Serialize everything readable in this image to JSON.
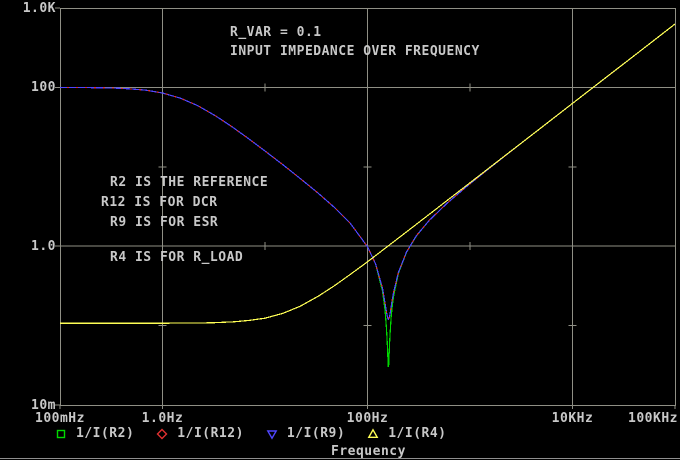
{
  "window": {
    "background": "#000000",
    "grid_color": "#8f8f85",
    "text_color": "#c8c8c8"
  },
  "chart_data": {
    "type": "line",
    "title": "INPUT IMPEDANCE OVER FREQUENCY",
    "param_label": "R_VAR = 0.1",
    "notes": [
      "R2 IS THE REFERENCE",
      "R12 IS FOR DCR",
      "R9 IS FOR ESR",
      "R4 IS FOR R_LOAD"
    ],
    "xlabel": "Frequency",
    "x_axis": {
      "scale": "log",
      "min": 0.1,
      "max": 100000,
      "labeled_ticks": [
        {
          "f": 0.1,
          "label": "100mHz"
        },
        {
          "f": 1,
          "label": "1.0Hz"
        },
        {
          "f": 100,
          "label": "100Hz"
        },
        {
          "f": 10000,
          "label": "10KHz"
        },
        {
          "f": 100000,
          "label": "100KHz"
        }
      ],
      "grid": [
        1,
        100,
        10000
      ],
      "minor": [
        10,
        1000
      ]
    },
    "y_axis": {
      "scale": "log",
      "min": 0.01,
      "max": 1000,
      "labeled_ticks": [
        {
          "v": 1000,
          "label": "1.0K"
        },
        {
          "v": 100,
          "label": "100"
        },
        {
          "v": 1,
          "label": "1.0"
        },
        {
          "v": 0.01,
          "label": "10m"
        }
      ],
      "grid": [
        100,
        1
      ],
      "minor": [
        10,
        0.1
      ]
    },
    "series": [
      {
        "name": "1/I(R2)",
        "color": "#00d800",
        "marker": "square",
        "points": [
          [
            0.1,
            99.8
          ],
          [
            0.15,
            99.6
          ],
          [
            0.22,
            99.1
          ],
          [
            0.33,
            98.2
          ],
          [
            0.47,
            96.1
          ],
          [
            0.68,
            92.4
          ],
          [
            1.0,
            84.9
          ],
          [
            1.5,
            73.1
          ],
          [
            2.2,
            59.0
          ],
          [
            3.3,
            43.8
          ],
          [
            4.7,
            32.4
          ],
          [
            6.8,
            23.0
          ],
          [
            10,
            15.8
          ],
          [
            15,
            10.6
          ],
          [
            22,
            7.15
          ],
          [
            33,
            4.66
          ],
          [
            47,
            3.12
          ],
          [
            68,
            1.94
          ],
          [
            100,
            0.985
          ],
          [
            120,
            0.598
          ],
          [
            140,
            0.271
          ],
          [
            148,
            0.16
          ],
          [
            150,
            0.133
          ],
          [
            153,
            0.095
          ],
          [
            156,
            0.059
          ],
          [
            158,
            0.039
          ],
          [
            159,
            0.0325
          ],
          [
            160,
            0.03
          ],
          [
            161,
            0.0326
          ],
          [
            162,
            0.039
          ],
          [
            164,
            0.058
          ],
          [
            166,
            0.08
          ],
          [
            170,
            0.126
          ],
          [
            175,
            0.183
          ],
          [
            180,
            0.24
          ],
          [
            200,
            0.454
          ],
          [
            240,
            0.839
          ],
          [
            300,
            1.349
          ],
          [
            400,
            2.111
          ],
          [
            600,
            3.502
          ],
          [
            1000,
            6.122
          ],
          [
            2000,
            12.49
          ],
          [
            5000,
            31.4
          ],
          [
            10000,
            62.8
          ],
          [
            30000,
            188.4
          ],
          [
            100000,
            628.2
          ]
        ]
      },
      {
        "name": "1/I(R12)",
        "color": "#e03030",
        "marker": "diamond",
        "points": [
          [
            0.1,
            99.8
          ],
          [
            0.15,
            99.6
          ],
          [
            0.22,
            99.1
          ],
          [
            0.33,
            98.2
          ],
          [
            0.47,
            96.1
          ],
          [
            0.68,
            92.4
          ],
          [
            1.0,
            84.9
          ],
          [
            1.5,
            73.1
          ],
          [
            2.2,
            59.0
          ],
          [
            3.3,
            43.8
          ],
          [
            4.7,
            32.4
          ],
          [
            6.8,
            23.0
          ],
          [
            10,
            15.8
          ],
          [
            15,
            10.6
          ],
          [
            22,
            7.15
          ],
          [
            33,
            4.66
          ],
          [
            47,
            3.12
          ],
          [
            68,
            1.94
          ],
          [
            100,
            0.985
          ],
          [
            120,
            0.598
          ],
          [
            140,
            0.295
          ],
          [
            150,
            0.177
          ],
          [
            155,
            0.136
          ],
          [
            158,
            0.123
          ],
          [
            160,
            0.12
          ],
          [
            163,
            0.126
          ],
          [
            166,
            0.141
          ],
          [
            170,
            0.171
          ],
          [
            175,
            0.217
          ],
          [
            180,
            0.266
          ],
          [
            200,
            0.468
          ],
          [
            240,
            0.846
          ],
          [
            300,
            1.354
          ],
          [
            400,
            2.114
          ],
          [
            600,
            3.504
          ],
          [
            1000,
            6.123
          ],
          [
            2000,
            12.49
          ],
          [
            5000,
            31.4
          ],
          [
            10000,
            62.8
          ],
          [
            30000,
            188.4
          ],
          [
            100000,
            628.2
          ]
        ]
      },
      {
        "name": "1/I(R9)",
        "color": "#4f46ff",
        "marker": "triangle-down",
        "points": [
          [
            0.1,
            99.8
          ],
          [
            0.15,
            99.6
          ],
          [
            0.22,
            99.1
          ],
          [
            0.33,
            98.2
          ],
          [
            0.47,
            96.1
          ],
          [
            0.68,
            92.4
          ],
          [
            1.0,
            84.9
          ],
          [
            1.5,
            73.1
          ],
          [
            2.2,
            59.0
          ],
          [
            3.3,
            43.8
          ],
          [
            4.7,
            32.4
          ],
          [
            6.8,
            23.0
          ],
          [
            10,
            15.8
          ],
          [
            15,
            10.6
          ],
          [
            22,
            7.15
          ],
          [
            33,
            4.66
          ],
          [
            47,
            3.12
          ],
          [
            68,
            1.94
          ],
          [
            100,
            0.985
          ],
          [
            120,
            0.598
          ],
          [
            140,
            0.295
          ],
          [
            150,
            0.177
          ],
          [
            155,
            0.136
          ],
          [
            158,
            0.123
          ],
          [
            160,
            0.12
          ],
          [
            163,
            0.126
          ],
          [
            166,
            0.141
          ],
          [
            170,
            0.171
          ],
          [
            175,
            0.217
          ],
          [
            180,
            0.266
          ],
          [
            200,
            0.468
          ],
          [
            240,
            0.846
          ],
          [
            300,
            1.354
          ],
          [
            400,
            2.114
          ],
          [
            600,
            3.504
          ],
          [
            1000,
            6.123
          ],
          [
            2000,
            12.49
          ],
          [
            5000,
            31.4
          ],
          [
            10000,
            62.8
          ],
          [
            30000,
            188.4
          ],
          [
            100000,
            628.2
          ]
        ]
      },
      {
        "name": "1/I(R4)",
        "color": "#ffff55",
        "marker": "triangle-up",
        "points": [
          [
            0.1,
            0.107
          ],
          [
            0.5,
            0.107
          ],
          [
            1,
            0.1072
          ],
          [
            2,
            0.1079
          ],
          [
            3,
            0.1086
          ],
          [
            5,
            0.1115
          ],
          [
            7,
            0.1164
          ],
          [
            10,
            0.124
          ],
          [
            15,
            0.143
          ],
          [
            22,
            0.175
          ],
          [
            33,
            0.234
          ],
          [
            47,
            0.314
          ],
          [
            68,
            0.441
          ],
          [
            100,
            0.637
          ],
          [
            150,
            0.948
          ],
          [
            220,
            1.386
          ],
          [
            330,
            2.076
          ],
          [
            470,
            2.955
          ],
          [
            680,
            4.274
          ],
          [
            1000,
            6.284
          ],
          [
            2200,
            13.82
          ],
          [
            4700,
            29.53
          ],
          [
            10000,
            62.83
          ],
          [
            22000,
            138.2
          ],
          [
            47000,
            295.3
          ],
          [
            100000,
            628.3
          ]
        ]
      }
    ]
  }
}
